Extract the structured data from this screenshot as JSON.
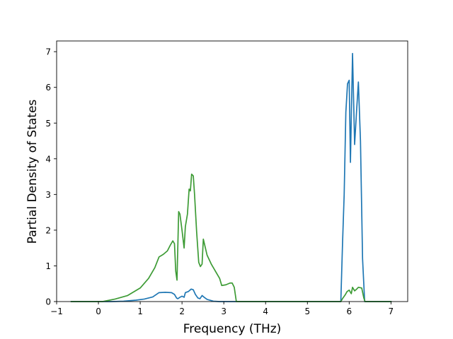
{
  "chart_data": {
    "type": "line",
    "xlabel": "Frequency (THz)",
    "ylabel": "Partial Density of States",
    "xlim": [
      -1,
      7.4
    ],
    "ylim": [
      0,
      7.3
    ],
    "xticks": [
      -1,
      0,
      1,
      2,
      3,
      4,
      5,
      6,
      7
    ],
    "yticks": [
      0,
      1,
      2,
      3,
      4,
      5,
      6,
      7
    ],
    "grid": false,
    "series": [
      {
        "color": "#1f77b4",
        "points": [
          [
            -0.65,
            0
          ],
          [
            0.3,
            0
          ],
          [
            0.6,
            0.01
          ],
          [
            0.9,
            0.04
          ],
          [
            1.1,
            0.07
          ],
          [
            1.3,
            0.13
          ],
          [
            1.45,
            0.25
          ],
          [
            1.6,
            0.26
          ],
          [
            1.75,
            0.25
          ],
          [
            1.82,
            0.2
          ],
          [
            1.87,
            0.1
          ],
          [
            1.9,
            0.08
          ],
          [
            1.95,
            0.12
          ],
          [
            2.0,
            0.15
          ],
          [
            2.05,
            0.12
          ],
          [
            2.08,
            0.25
          ],
          [
            2.15,
            0.28
          ],
          [
            2.22,
            0.35
          ],
          [
            2.27,
            0.33
          ],
          [
            2.32,
            0.2
          ],
          [
            2.38,
            0.1
          ],
          [
            2.43,
            0.08
          ],
          [
            2.48,
            0.17
          ],
          [
            2.53,
            0.12
          ],
          [
            2.6,
            0.06
          ],
          [
            2.75,
            0.01
          ],
          [
            2.9,
            0
          ],
          [
            5.8,
            0
          ],
          [
            5.84,
            1.6
          ],
          [
            5.88,
            3.0
          ],
          [
            5.92,
            5.3
          ],
          [
            5.96,
            6.1
          ],
          [
            6.0,
            6.2
          ],
          [
            6.03,
            3.9
          ],
          [
            6.08,
            6.95
          ],
          [
            6.13,
            4.4
          ],
          [
            6.18,
            5.4
          ],
          [
            6.22,
            6.15
          ],
          [
            6.27,
            4.5
          ],
          [
            6.32,
            1.2
          ],
          [
            6.37,
            0
          ],
          [
            7.0,
            0
          ]
        ]
      },
      {
        "color": "#3d9b35",
        "points": [
          [
            -0.65,
            0
          ],
          [
            0.1,
            0
          ],
          [
            0.4,
            0.07
          ],
          [
            0.7,
            0.17
          ],
          [
            1.0,
            0.38
          ],
          [
            1.2,
            0.65
          ],
          [
            1.35,
            0.95
          ],
          [
            1.45,
            1.25
          ],
          [
            1.55,
            1.32
          ],
          [
            1.65,
            1.42
          ],
          [
            1.72,
            1.58
          ],
          [
            1.78,
            1.7
          ],
          [
            1.82,
            1.62
          ],
          [
            1.85,
            0.85
          ],
          [
            1.88,
            0.6
          ],
          [
            1.92,
            2.52
          ],
          [
            1.95,
            2.45
          ],
          [
            2.0,
            2.0
          ],
          [
            2.05,
            1.5
          ],
          [
            2.08,
            2.1
          ],
          [
            2.13,
            2.45
          ],
          [
            2.17,
            3.15
          ],
          [
            2.2,
            3.1
          ],
          [
            2.23,
            3.57
          ],
          [
            2.27,
            3.52
          ],
          [
            2.3,
            3.0
          ],
          [
            2.35,
            1.95
          ],
          [
            2.4,
            1.1
          ],
          [
            2.44,
            0.98
          ],
          [
            2.48,
            1.05
          ],
          [
            2.51,
            1.75
          ],
          [
            2.55,
            1.55
          ],
          [
            2.6,
            1.3
          ],
          [
            2.7,
            1.05
          ],
          [
            2.8,
            0.85
          ],
          [
            2.9,
            0.65
          ],
          [
            2.95,
            0.45
          ],
          [
            3.05,
            0.47
          ],
          [
            3.15,
            0.52
          ],
          [
            3.2,
            0.52
          ],
          [
            3.25,
            0.4
          ],
          [
            3.3,
            0
          ],
          [
            5.8,
            0
          ],
          [
            5.85,
            0.1
          ],
          [
            5.9,
            0.18
          ],
          [
            5.95,
            0.28
          ],
          [
            6.0,
            0.32
          ],
          [
            6.05,
            0.22
          ],
          [
            6.08,
            0.4
          ],
          [
            6.13,
            0.3
          ],
          [
            6.18,
            0.35
          ],
          [
            6.22,
            0.4
          ],
          [
            6.3,
            0.38
          ],
          [
            6.35,
            0.1
          ],
          [
            6.38,
            0
          ],
          [
            7.0,
            0
          ]
        ]
      }
    ]
  }
}
